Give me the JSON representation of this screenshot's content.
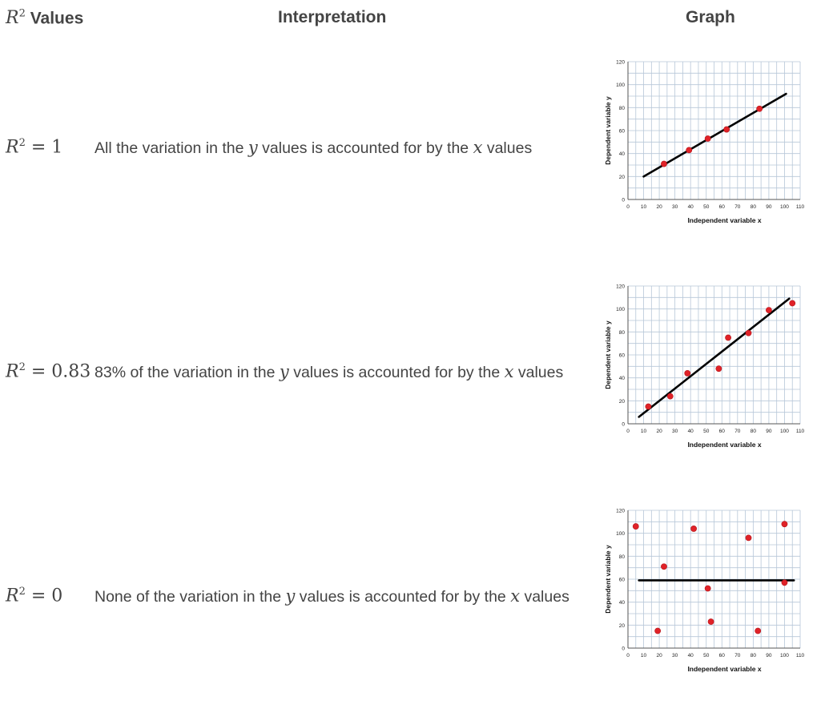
{
  "header": {
    "r2_symbol": "R",
    "r2_exp": "2",
    "r2_word": " Values",
    "interpretation": "Interpretation",
    "graph": "Graph"
  },
  "rows": [
    {
      "r2_symbol": "R",
      "r2_exp": "2",
      "r2_value": " = 1",
      "interp_a": "All the variation in the ",
      "var_y": "y",
      "interp_b": " values is accounted for by the ",
      "var_x": "x",
      "interp_c": " values"
    },
    {
      "r2_symbol": "R",
      "r2_exp": "2",
      "r2_value": " = 0.83",
      "interp_a": "83% of the variation in the ",
      "var_y": "y",
      "interp_b": " values is accounted for by the ",
      "var_x": "x",
      "interp_c": " values"
    },
    {
      "r2_symbol": "R",
      "r2_exp": "2",
      "r2_value": " = 0",
      "interp_a": "None of the variation in the ",
      "var_y": "y",
      "interp_b": " values is accounted for by the ",
      "var_x": "x",
      "interp_c": " values"
    }
  ],
  "colors": {
    "text": "#444444",
    "grid": "#b7c7d8",
    "point": "#e02228",
    "line": "#000000"
  },
  "chart_data": [
    {
      "type": "scatter",
      "xlabel": "Independent variable x",
      "ylabel": "Dependent variable y",
      "xlim": [
        0,
        110
      ],
      "ylim": [
        0,
        120
      ],
      "xticks": [
        0,
        10,
        20,
        30,
        40,
        50,
        60,
        70,
        80,
        90,
        100,
        110
      ],
      "yticks": [
        0,
        20,
        40,
        60,
        80,
        100,
        120
      ],
      "grid": true,
      "points": [
        [
          23,
          31
        ],
        [
          39,
          43
        ],
        [
          51,
          53
        ],
        [
          63,
          61
        ],
        [
          84,
          79
        ]
      ],
      "fit_line": [
        [
          10,
          20
        ],
        [
          101,
          92
        ]
      ]
    },
    {
      "type": "scatter",
      "xlabel": "Independent variable x",
      "ylabel": "Dependent variable y",
      "xlim": [
        0,
        110
      ],
      "ylim": [
        0,
        120
      ],
      "xticks": [
        0,
        10,
        20,
        30,
        40,
        50,
        60,
        70,
        80,
        90,
        100,
        110
      ],
      "yticks": [
        0,
        20,
        40,
        60,
        80,
        100,
        120
      ],
      "grid": true,
      "points": [
        [
          13,
          15
        ],
        [
          27,
          24
        ],
        [
          38,
          44
        ],
        [
          58,
          48
        ],
        [
          64,
          75
        ],
        [
          77,
          79
        ],
        [
          90,
          99
        ],
        [
          105,
          105
        ]
      ],
      "fit_line": [
        [
          7,
          6
        ],
        [
          103,
          109
        ]
      ]
    },
    {
      "type": "scatter",
      "xlabel": "Independent variable x",
      "ylabel": "Dependent variable y",
      "xlim": [
        0,
        110
      ],
      "ylim": [
        0,
        120
      ],
      "xticks": [
        0,
        10,
        20,
        30,
        40,
        50,
        60,
        70,
        80,
        90,
        100,
        110
      ],
      "yticks": [
        0,
        20,
        40,
        60,
        80,
        100,
        120
      ],
      "grid": true,
      "points": [
        [
          5,
          106
        ],
        [
          19,
          15
        ],
        [
          23,
          71
        ],
        [
          42,
          104
        ],
        [
          51,
          52
        ],
        [
          53,
          23
        ],
        [
          77,
          96
        ],
        [
          83,
          15
        ],
        [
          100,
          108
        ],
        [
          100,
          57
        ]
      ],
      "fit_line": [
        [
          7,
          59
        ],
        [
          106,
          59
        ]
      ]
    }
  ]
}
